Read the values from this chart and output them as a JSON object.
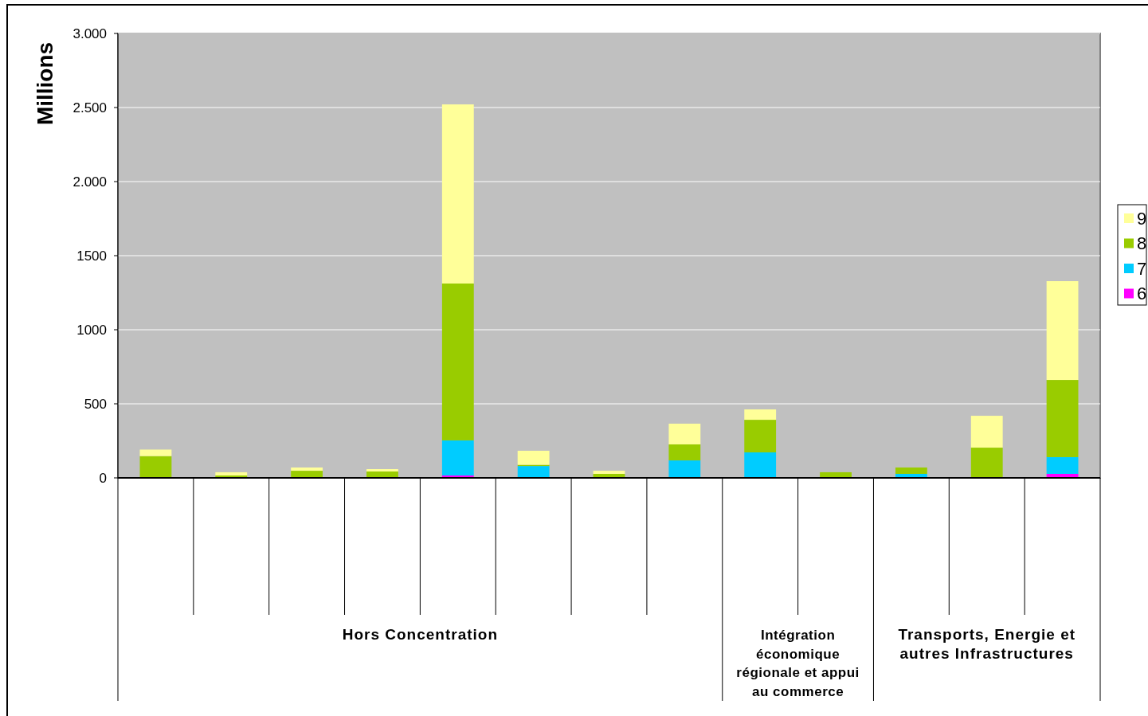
{
  "chart_data": {
    "type": "bar",
    "stacked": true,
    "ylabel": "Millions",
    "categories": [
      null,
      null,
      null,
      null,
      null,
      null,
      null,
      null,
      null,
      null,
      null,
      null,
      null
    ],
    "series": [
      {
        "name": "6",
        "color": "#ff00ff",
        "values": [
          0,
          0,
          0,
          0,
          16,
          0,
          0,
          0,
          0,
          0,
          0,
          0,
          27
        ]
      },
      {
        "name": "7",
        "color": "#00ccff",
        "values": [
          null,
          0,
          0,
          0,
          237,
          80,
          0,
          118,
          172,
          0,
          27,
          0,
          113
        ]
      },
      {
        "name": "8",
        "color": "#99cc00",
        "values": [
          147,
          16,
          48,
          43,
          1059,
          8,
          27,
          108,
          220,
          38,
          43,
          204,
          521
        ]
      },
      {
        "name": "9",
        "color": "#ffff99",
        "values": [
          44,
          22,
          22,
          16,
          1209,
          95,
          21,
          140,
          70,
          0,
          0,
          215,
          667
        ]
      }
    ],
    "ylim": [
      0,
      3000
    ],
    "yticks": [
      0,
      500,
      {
        "value": 1000,
        "label": "1000"
      },
      {
        "value": 1500,
        "label": "1500"
      },
      {
        "value": 2000,
        "label": "2.000"
      },
      {
        "value": 2500,
        "label": "2.500"
      },
      {
        "value": 3000,
        "label": "3.000"
      }
    ],
    "grid": "y",
    "legend": "right",
    "annotations": [
      "Hors Concentration",
      "Intégration économique régionale et appui au commerce",
      "Transports, Energie et autres Infrastructures"
    ]
  }
}
